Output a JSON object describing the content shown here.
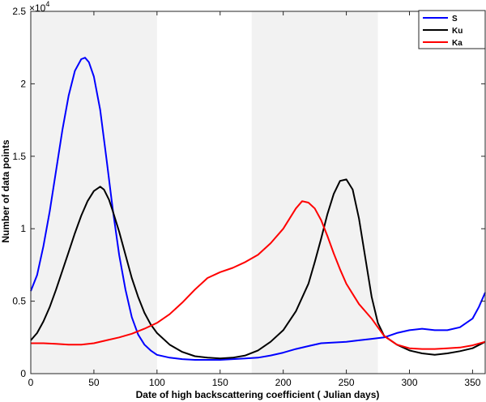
{
  "chart_data": {
    "type": "line",
    "title": "",
    "xlabel": "Date of high backscattering coefficient ( Julian days)",
    "ylabel": "Number of data points",
    "xlim": [
      0,
      360
    ],
    "ylim": [
      0,
      25000
    ],
    "y_multiplier_label": "×10",
    "y_multiplier_exponent": "4",
    "xticks": [
      0,
      50,
      100,
      150,
      200,
      250,
      300,
      350
    ],
    "yticks": [
      0,
      5000,
      10000,
      15000,
      20000,
      25000
    ],
    "ytick_labels": [
      "0",
      "0.5",
      "1",
      "1.5",
      "2",
      "2.5"
    ],
    "grid": false,
    "legend_position": "top-right",
    "shaded_bands": [
      [
        0,
        100
      ],
      [
        175,
        275
      ]
    ],
    "band_color": "#f2f2f2",
    "series": [
      {
        "name": "S",
        "color": "#0000ff",
        "x": [
          0,
          5,
          10,
          15,
          20,
          25,
          30,
          35,
          40,
          43,
          46,
          50,
          55,
          60,
          65,
          70,
          75,
          80,
          85,
          90,
          95,
          100,
          110,
          120,
          130,
          140,
          150,
          160,
          170,
          180,
          190,
          200,
          210,
          220,
          230,
          240,
          250,
          260,
          270,
          280,
          290,
          300,
          310,
          320,
          330,
          340,
          350,
          355,
          360
        ],
        "y": [
          5700,
          6800,
          8800,
          11200,
          14000,
          16800,
          19200,
          20900,
          21700,
          21800,
          21500,
          20500,
          18200,
          14800,
          11300,
          8200,
          5800,
          3900,
          2700,
          2000,
          1600,
          1300,
          1100,
          1000,
          950,
          950,
          950,
          1000,
          1050,
          1100,
          1250,
          1450,
          1700,
          1900,
          2100,
          2150,
          2200,
          2300,
          2400,
          2500,
          2800,
          3000,
          3100,
          3000,
          3000,
          3200,
          3800,
          4600,
          5600
        ]
      },
      {
        "name": "Ku",
        "color": "#000000",
        "x": [
          0,
          5,
          10,
          15,
          20,
          25,
          30,
          35,
          40,
          45,
          50,
          55,
          58,
          62,
          65,
          70,
          75,
          80,
          85,
          90,
          95,
          100,
          110,
          120,
          130,
          140,
          150,
          160,
          170,
          180,
          190,
          200,
          210,
          220,
          225,
          230,
          235,
          240,
          245,
          250,
          255,
          260,
          265,
          270,
          275,
          280,
          290,
          300,
          310,
          320,
          330,
          340,
          350,
          360
        ],
        "y": [
          2300,
          2800,
          3600,
          4600,
          5800,
          7100,
          8400,
          9700,
          10900,
          11900,
          12600,
          12900,
          12700,
          12000,
          11200,
          9800,
          8200,
          6600,
          5300,
          4200,
          3400,
          2800,
          2000,
          1500,
          1200,
          1100,
          1050,
          1100,
          1250,
          1600,
          2200,
          3000,
          4300,
          6200,
          7700,
          9300,
          11000,
          12400,
          13300,
          13400,
          12700,
          10700,
          8000,
          5300,
          3500,
          2600,
          2000,
          1600,
          1400,
          1300,
          1400,
          1550,
          1750,
          2200
        ]
      },
      {
        "name": "Ka",
        "color": "#ff0000",
        "x": [
          0,
          10,
          20,
          30,
          40,
          50,
          60,
          70,
          80,
          90,
          100,
          110,
          120,
          130,
          140,
          150,
          160,
          170,
          180,
          190,
          200,
          205,
          210,
          215,
          220,
          225,
          230,
          235,
          240,
          245,
          250,
          255,
          260,
          265,
          270,
          275,
          280,
          290,
          300,
          310,
          320,
          330,
          340,
          350,
          360
        ],
        "y": [
          2100,
          2100,
          2050,
          2000,
          2000,
          2100,
          2300,
          2500,
          2750,
          3100,
          3500,
          4100,
          4900,
          5800,
          6600,
          7000,
          7300,
          7700,
          8200,
          9000,
          10000,
          10700,
          11400,
          11900,
          11800,
          11400,
          10600,
          9500,
          8300,
          7200,
          6200,
          5500,
          4800,
          4300,
          3800,
          3200,
          2600,
          2000,
          1750,
          1700,
          1700,
          1750,
          1800,
          1950,
          2200
        ]
      }
    ]
  }
}
